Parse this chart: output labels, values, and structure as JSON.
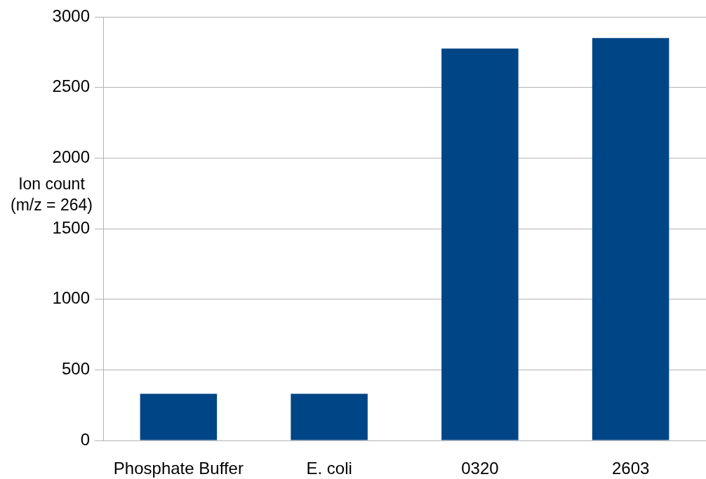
{
  "chart_data": {
    "type": "bar",
    "ylabel": "Ion count\n(m/z = 264)",
    "categories": [
      "Phosphate Buffer",
      "E. coli",
      "0320",
      "2603"
    ],
    "values": [
      330,
      330,
      2775,
      2850
    ],
    "color": "#004586",
    "ylim": [
      0,
      3000
    ],
    "yticks": [
      0,
      500,
      1000,
      1500,
      2000,
      2500,
      3000
    ],
    "grid": "y",
    "legend": false
  }
}
